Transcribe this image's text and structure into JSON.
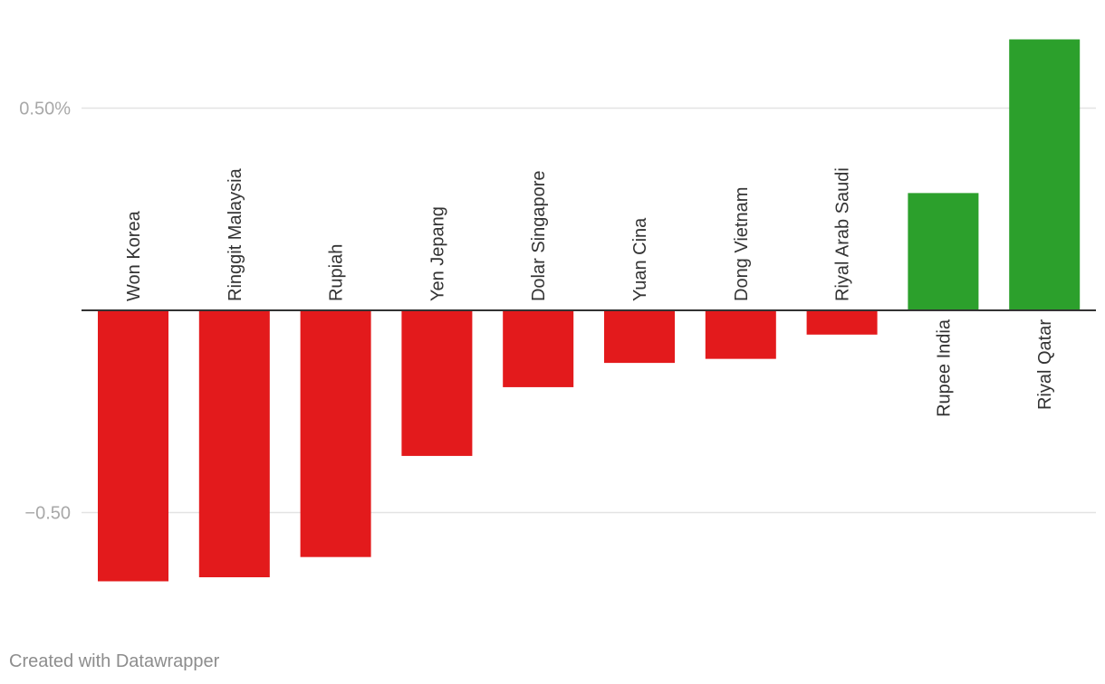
{
  "chart_data": {
    "type": "bar",
    "categories": [
      "Won Korea",
      "Ringgit Malaysia",
      "Rupiah",
      "Yen Jepang",
      "Dolar Singapore",
      "Yuan Cina",
      "Dong Vietnam",
      "Riyal Arab Saudi",
      "Rupee India",
      "Riyal Qatar"
    ],
    "values": [
      -0.67,
      -0.66,
      -0.61,
      -0.36,
      -0.19,
      -0.13,
      -0.12,
      -0.06,
      0.29,
      0.67
    ],
    "ylim": [
      -0.75,
      0.75
    ],
    "yticks": [
      {
        "value": 0.5,
        "label": "0.50%"
      },
      {
        "value": -0.5,
        "label": "−0.50"
      }
    ],
    "colors": {
      "negative": "#e31a1c",
      "positive": "#2ca02c"
    },
    "grid": true
  },
  "footer": {
    "credit": "Created with Datawrapper"
  }
}
